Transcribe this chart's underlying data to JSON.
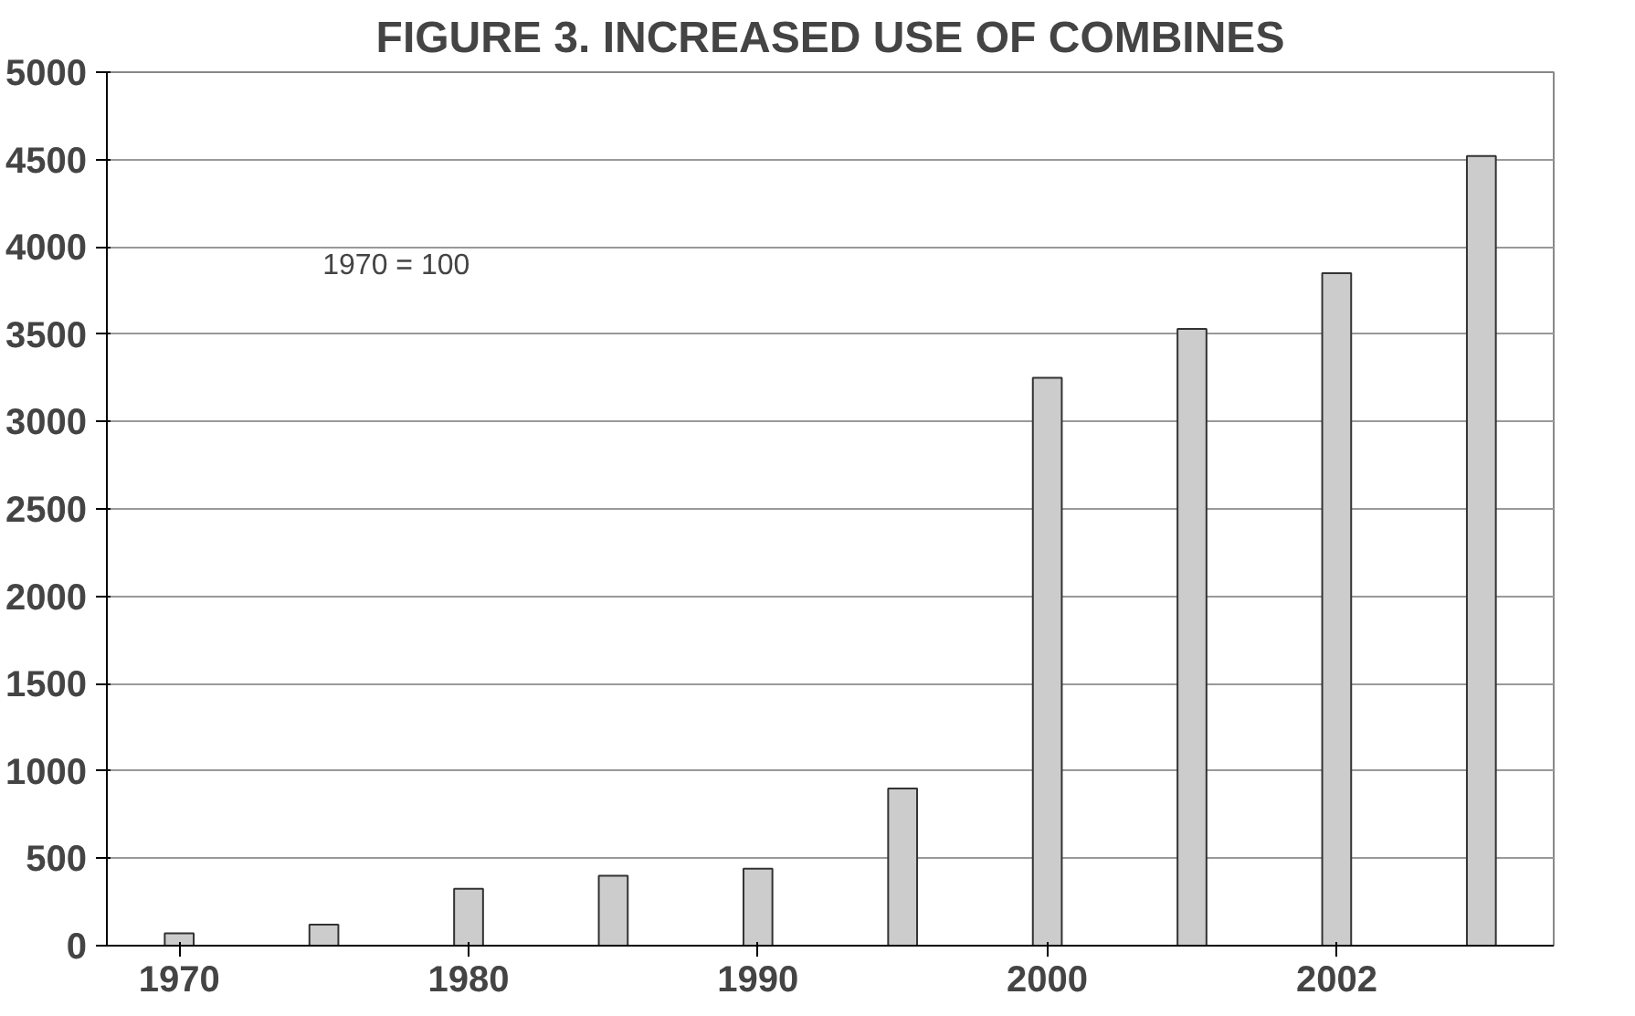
{
  "chart_data": {
    "type": "bar",
    "title": "FIGURE 3. INCREASED USE OF COMBINES",
    "categories": [
      "1970",
      null,
      "1980",
      null,
      "1990",
      null,
      "2000",
      null,
      "2002",
      null
    ],
    "values": [
      70,
      120,
      325,
      400,
      440,
      900,
      3250,
      3530,
      3850,
      4520
    ],
    "color": "#cccccc",
    "ylim": [
      0,
      5000
    ],
    "yticks": [
      0,
      500,
      1000,
      1500,
      2000,
      2500,
      3000,
      3500,
      4000,
      4500,
      5000
    ],
    "grid": "y",
    "annotations": [
      "1970 = 100"
    ]
  }
}
